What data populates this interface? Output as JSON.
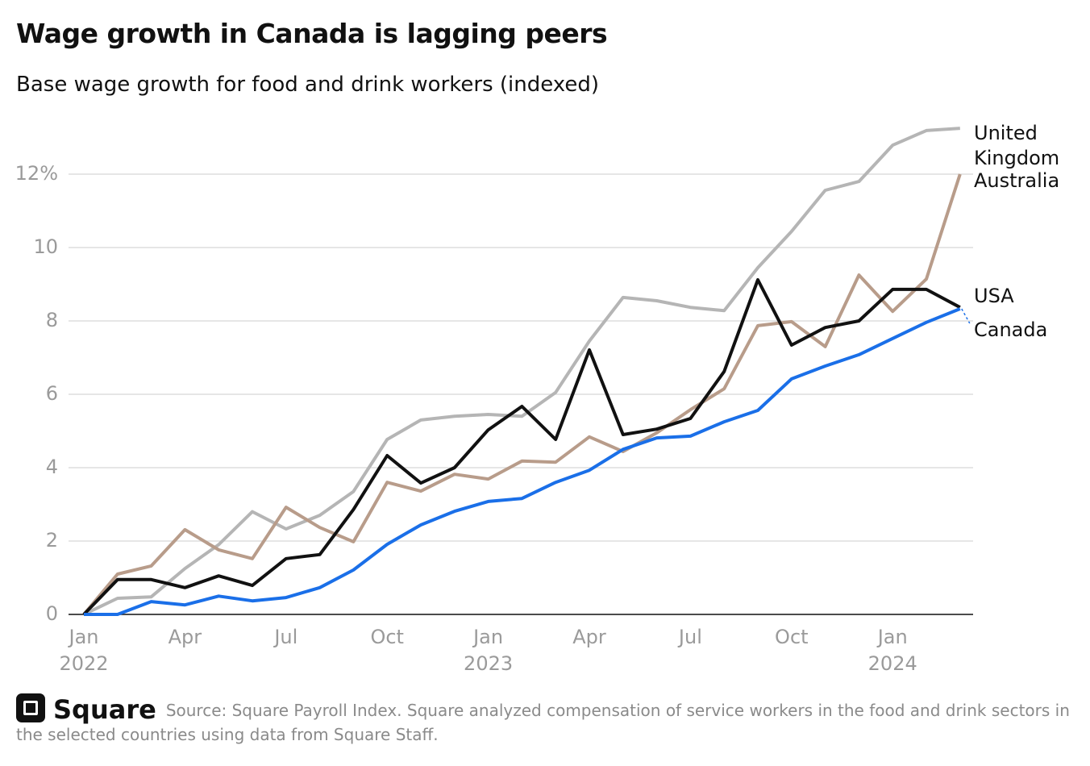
{
  "chart_data": {
    "type": "line",
    "title": "Wage growth in Canada is lagging peers",
    "subtitle": "Base wage growth for food and drink workers (indexed)",
    "categories": [
      "Jan",
      null,
      null,
      "Apr",
      null,
      null,
      "Jul",
      null,
      null,
      "Oct",
      null,
      null,
      "Jan",
      null,
      null,
      "Apr",
      null,
      null,
      "Jul",
      null,
      null,
      "Oct",
      null,
      null,
      "Jan",
      null,
      null
    ],
    "x_years": [
      "2022",
      "2023",
      "2024"
    ],
    "ylim": [
      0,
      13.5
    ],
    "yticks": [
      0,
      2,
      4,
      6,
      8,
      10,
      {
        "value": 12,
        "label": "12%"
      }
    ],
    "grid": true,
    "series": [
      {
        "name": "United Kingdom",
        "color": "#b5b5b5",
        "values": [
          0,
          0.44,
          0.48,
          1.25,
          1.9,
          2.8,
          2.33,
          2.7,
          3.35,
          4.77,
          5.3,
          5.4,
          5.45,
          5.4,
          6.05,
          7.45,
          8.64,
          8.55,
          8.37,
          8.28,
          9.45,
          10.44,
          11.56,
          11.8,
          12.79,
          13.19,
          13.25
        ]
      },
      {
        "name": "Australia",
        "color": "#b89c8a",
        "values": [
          0,
          1.1,
          1.32,
          2.31,
          1.76,
          1.52,
          2.92,
          2.37,
          1.98,
          3.6,
          3.36,
          3.82,
          3.69,
          4.18,
          4.15,
          4.84,
          4.44,
          4.95,
          5.58,
          6.15,
          7.87,
          7.98,
          7.3,
          9.25,
          8.26,
          9.14,
          12.0
        ]
      },
      {
        "name": "USA",
        "color": "#111111",
        "values": [
          0,
          0.95,
          0.95,
          0.73,
          1.05,
          0.79,
          1.52,
          1.63,
          2.86,
          4.33,
          3.58,
          4.0,
          5.03,
          5.67,
          4.77,
          7.21,
          4.9,
          5.05,
          5.34,
          6.62,
          9.12,
          7.34,
          7.82,
          8.0,
          8.86,
          8.86,
          8.37
        ]
      },
      {
        "name": "Canada",
        "color": "#1a6fe8",
        "values": [
          0,
          0,
          0.35,
          0.26,
          0.5,
          0.37,
          0.46,
          0.73,
          1.21,
          1.91,
          2.44,
          2.81,
          3.08,
          3.16,
          3.6,
          3.93,
          4.5,
          4.81,
          4.86,
          5.25,
          5.56,
          6.42,
          6.77,
          7.08,
          7.52,
          7.96,
          8.33
        ]
      }
    ]
  },
  "footer": {
    "brand": "Square",
    "source": "Source: Square Payroll Index. Square analyzed compensation of service workers in the food and drink sectors in the selected countries using data from Square Staff."
  }
}
